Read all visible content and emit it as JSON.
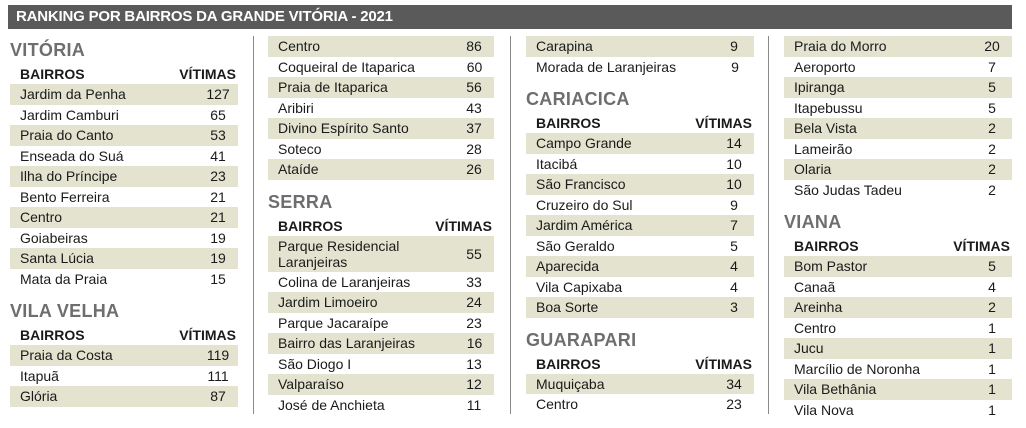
{
  "title": "RANKING POR BAIRROS DA GRANDE VITÓRIA - 2021",
  "colors": {
    "banner": "#5a5a5a",
    "shade": "#e4e3cf",
    "section_title": "#6e6e6e"
  },
  "columns": [
    {
      "sections": [
        {
          "name": "VITÓRIA",
          "header": {
            "name": "BAIRROS",
            "value": "VÍTIMAS"
          },
          "rows": [
            {
              "name": "Jardim da Penha",
              "value": "127"
            },
            {
              "name": "Jardim Camburi",
              "value": "65"
            },
            {
              "name": "Praia do Canto",
              "value": "53"
            },
            {
              "name": "Enseada do Suá",
              "value": "41"
            },
            {
              "name": "Ilha do Príncipe",
              "value": "23"
            },
            {
              "name": "Bento Ferreira",
              "value": "21"
            },
            {
              "name": "Centro",
              "value": "21"
            },
            {
              "name": "Goiabeiras",
              "value": "19"
            },
            {
              "name": "Santa Lúcia",
              "value": "19"
            },
            {
              "name": "Mata da Praia",
              "value": "15"
            }
          ]
        },
        {
          "name": "VILA VELHA",
          "header": {
            "name": "BAIRROS",
            "value": "VÍTIMAS"
          },
          "rows": [
            {
              "name": "Praia da Costa",
              "value": "119"
            },
            {
              "name": "Itapuã",
              "value": "111"
            },
            {
              "name": "Glória",
              "value": "87"
            }
          ]
        }
      ]
    },
    {
      "sections": [
        {
          "name": "",
          "header": null,
          "rows": [
            {
              "name": "Centro",
              "value": "86"
            },
            {
              "name": "Coqueiral de Itaparica",
              "value": "60"
            },
            {
              "name": "Praia de Itaparica",
              "value": "56"
            },
            {
              "name": "Aribiri",
              "value": "43"
            },
            {
              "name": "Divino Espírito Santo",
              "value": "37"
            },
            {
              "name": "Soteco",
              "value": "28"
            },
            {
              "name": "Ataíde",
              "value": "26"
            }
          ]
        },
        {
          "name": "SERRA",
          "header": {
            "name": "BAIRROS",
            "value": "VÍTIMAS"
          },
          "rows": [
            {
              "name": "Parque Residencial Laranjeiras",
              "value": "55"
            },
            {
              "name": "Colina de Laranjeiras",
              "value": "33"
            },
            {
              "name": "Jardim Limoeiro",
              "value": "24"
            },
            {
              "name": "Parque Jacaraípe",
              "value": "23"
            },
            {
              "name": "Bairro das Laranjeiras",
              "value": "16"
            },
            {
              "name": "São Diogo I",
              "value": "13"
            },
            {
              "name": "Valparaíso",
              "value": "12"
            },
            {
              "name": "José de Anchieta",
              "value": "11"
            }
          ]
        }
      ]
    },
    {
      "sections": [
        {
          "name": "",
          "header": null,
          "rows": [
            {
              "name": "Carapina",
              "value": "9"
            },
            {
              "name": "Morada de Laranjeiras",
              "value": "9"
            }
          ]
        },
        {
          "name": "CARIACICA",
          "header": {
            "name": "BAIRROS",
            "value": "VÍTIMAS"
          },
          "rows": [
            {
              "name": "Campo Grande",
              "value": "14"
            },
            {
              "name": "Itacibá",
              "value": "10"
            },
            {
              "name": "São Francisco",
              "value": "10"
            },
            {
              "name": "Cruzeiro do Sul",
              "value": "9"
            },
            {
              "name": "Jardim América",
              "value": "7"
            },
            {
              "name": "São Geraldo",
              "value": "5"
            },
            {
              "name": "Aparecida",
              "value": "4"
            },
            {
              "name": "Vila Capixaba",
              "value": "4"
            },
            {
              "name": "Boa Sorte",
              "value": "3"
            }
          ]
        },
        {
          "name": "GUARAPARI",
          "header": {
            "name": "BAIRROS",
            "value": "VÍTIMAS"
          },
          "rows": [
            {
              "name": "Muquiçaba",
              "value": "34"
            },
            {
              "name": "Centro",
              "value": "23"
            }
          ]
        }
      ]
    },
    {
      "sections": [
        {
          "name": "",
          "header": null,
          "rows": [
            {
              "name": "Praia do Morro",
              "value": "20"
            },
            {
              "name": "Aeroporto",
              "value": "7"
            },
            {
              "name": "Ipiranga",
              "value": "5"
            },
            {
              "name": "Itapebussu",
              "value": "5"
            },
            {
              "name": "Bela Vista",
              "value": "2"
            },
            {
              "name": "Lameirão",
              "value": "2"
            },
            {
              "name": "Olaria",
              "value": "2"
            },
            {
              "name": "São Judas Tadeu",
              "value": "2"
            }
          ]
        },
        {
          "name": "VIANA",
          "header": {
            "name": "BAIRROS",
            "value": "VÍTIMAS"
          },
          "rows": [
            {
              "name": "Bom Pastor",
              "value": "5"
            },
            {
              "name": "Canaã",
              "value": "4"
            },
            {
              "name": "Areinha",
              "value": "2"
            },
            {
              "name": "Centro",
              "value": "1"
            },
            {
              "name": "Jucu",
              "value": "1"
            },
            {
              "name": "Marcílio de Noronha",
              "value": "1"
            },
            {
              "name": "Vila Bethânia",
              "value": "1"
            },
            {
              "name": "Vila Nova",
              "value": "1"
            }
          ]
        }
      ]
    }
  ]
}
